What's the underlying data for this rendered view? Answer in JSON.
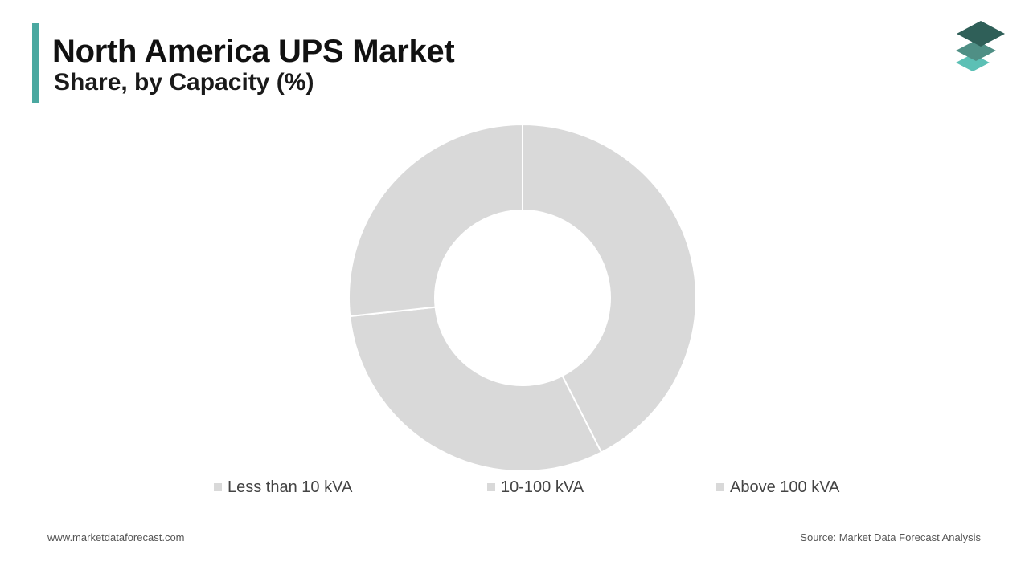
{
  "header": {
    "title": "North America UPS Market",
    "subtitle": "Share, by Capacity (%)"
  },
  "logo": {
    "icon": "stacked-layers-icon",
    "colors": [
      "#2f5f58",
      "#4f8f85",
      "#5cc0b5"
    ]
  },
  "chart_data": {
    "type": "pie",
    "donut": true,
    "title": "North America UPS Market",
    "subtitle": "Share, by Capacity (%)",
    "categories": [
      "Less than 10 kVA",
      "10-100 kVA",
      "Above 100 kVA"
    ],
    "values": [
      42.5,
      30.8,
      26.7
    ],
    "colors": [
      "#d9d9d9",
      "#d9d9d9",
      "#d9d9d9"
    ],
    "legend": "bottom",
    "data_labels": false
  },
  "footer": {
    "website": "www.marketdataforecast.com",
    "source": "Source: Market Data Forecast Analysis"
  }
}
